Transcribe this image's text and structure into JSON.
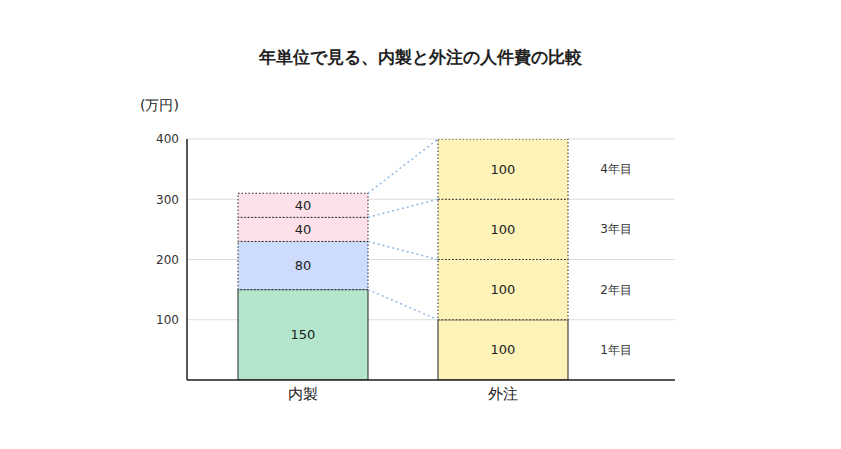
{
  "chart_data": {
    "type": "bar",
    "title": "年単位で見る、内製と外注の人件費の比較",
    "y_label": "(万円)",
    "categories": [
      "内製",
      "外注"
    ],
    "series": [
      {
        "name": "1年目",
        "values": [
          150,
          100
        ],
        "colors": [
          "#b3e6cc",
          "#fdf3b8"
        ],
        "line_style": "solid"
      },
      {
        "name": "2年目",
        "values": [
          80,
          100
        ],
        "colors": [
          "#cddcfd",
          "#fdf3b8"
        ],
        "line_style": "dotted"
      },
      {
        "name": "3年目",
        "values": [
          40,
          100
        ],
        "colors": [
          "#fde1ea",
          "#fdf3b8"
        ],
        "line_style": "dotted"
      },
      {
        "name": "4年目",
        "values": [
          40,
          100
        ],
        "colors": [
          "#fde1ea",
          "#fdf3b8"
        ],
        "line_style": "dotted"
      }
    ],
    "ylim": [
      0,
      400
    ],
    "yticks": [
      100,
      200,
      300,
      400
    ],
    "stacked": true,
    "grid": true,
    "data_labels": true
  }
}
